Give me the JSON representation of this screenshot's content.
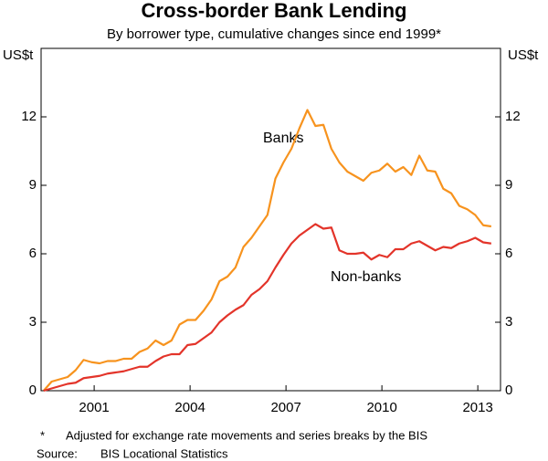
{
  "chart_data": {
    "type": "line",
    "title": "Cross-border Bank Lending",
    "subtitle": "By borrower type, cumulative changes since end 1999*",
    "y_label": "US$t",
    "y2_label": "US$t",
    "x": [
      1999.92,
      2000.17,
      2000.42,
      2000.67,
      2000.92,
      2001.17,
      2001.42,
      2001.67,
      2001.92,
      2002.17,
      2002.42,
      2002.67,
      2002.92,
      2003.17,
      2003.42,
      2003.67,
      2003.92,
      2004.17,
      2004.42,
      2004.67,
      2004.92,
      2005.17,
      2005.42,
      2005.67,
      2005.92,
      2006.17,
      2006.42,
      2006.67,
      2006.92,
      2007.17,
      2007.42,
      2007.67,
      2007.92,
      2008.17,
      2008.42,
      2008.67,
      2008.92,
      2009.17,
      2009.42,
      2009.67,
      2009.92,
      2010.17,
      2010.42,
      2010.67,
      2010.92,
      2011.17,
      2011.42,
      2011.67,
      2011.92,
      2012.17,
      2012.42,
      2012.67,
      2012.92,
      2013.17,
      2013.42,
      2013.67,
      2013.92
    ],
    "series": [
      {
        "name": "Banks",
        "color": "#f7931e",
        "values": [
          0,
          0.4,
          0.5,
          0.6,
          0.9,
          1.35,
          1.25,
          1.2,
          1.3,
          1.3,
          1.4,
          1.4,
          1.7,
          1.85,
          2.2,
          2.0,
          2.2,
          2.9,
          3.1,
          3.1,
          3.5,
          4.0,
          4.8,
          5.0,
          5.4,
          6.3,
          6.7,
          7.2,
          7.7,
          9.3,
          10.0,
          10.6,
          11.5,
          12.3,
          11.6,
          11.65,
          10.6,
          10.0,
          9.6,
          9.4,
          9.2,
          9.55,
          9.65,
          9.95,
          9.6,
          9.8,
          9.45,
          10.3,
          9.65,
          9.6,
          8.85,
          8.65,
          8.1,
          7.95,
          7.7,
          7.25,
          7.2
        ]
      },
      {
        "name": "Non-banks",
        "color": "#e3342a",
        "values": [
          0,
          0.1,
          0.2,
          0.3,
          0.35,
          0.55,
          0.6,
          0.65,
          0.75,
          0.8,
          0.85,
          0.95,
          1.05,
          1.05,
          1.3,
          1.5,
          1.6,
          1.6,
          2.0,
          2.05,
          2.3,
          2.55,
          3.0,
          3.3,
          3.55,
          3.75,
          4.2,
          4.45,
          4.8,
          5.4,
          5.95,
          6.45,
          6.8,
          7.05,
          7.3,
          7.1,
          7.15,
          6.15,
          6.0,
          6.0,
          6.05,
          5.75,
          5.95,
          5.85,
          6.2,
          6.2,
          6.45,
          6.55,
          6.35,
          6.15,
          6.3,
          6.25,
          6.45,
          6.55,
          6.7,
          6.5,
          6.45
        ]
      }
    ],
    "xlim": [
      1999.84,
      2014.21
    ],
    "xticks": [
      {
        "value": 2001.5,
        "label": "2001"
      },
      {
        "value": 2004.5,
        "label": "2004"
      },
      {
        "value": 2007.5,
        "label": "2007"
      },
      {
        "value": 2010.5,
        "label": "2010"
      },
      {
        "value": 2013.5,
        "label": "2013"
      }
    ],
    "ylim": [
      0,
      15
    ],
    "yticks": [
      0,
      3,
      6,
      9,
      12
    ],
    "y2lim": [
      0,
      15
    ],
    "y2ticks": [
      0,
      3,
      6,
      9,
      12
    ],
    "footnote": "Adjusted for exchange rate movements and series breaks by the BIS",
    "footnote_marker": "*",
    "source_label": "Source:",
    "source": "BIS Locational Statistics"
  }
}
